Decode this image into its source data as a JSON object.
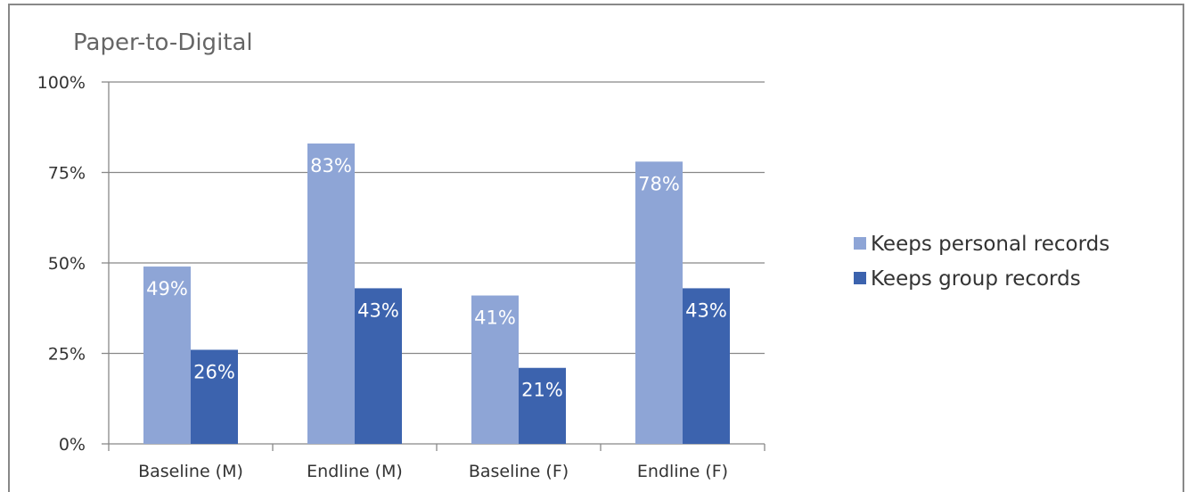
{
  "chart_data": {
    "type": "bar",
    "title": "Paper-to-Digital",
    "categories": [
      "Baseline (M)",
      "Endline (M)",
      "Baseline (F)",
      "Endline (F)"
    ],
    "series": [
      {
        "name": "Keeps personal records",
        "values": [
          0.49,
          0.83,
          0.41,
          0.78
        ],
        "labels": [
          "49%",
          "83%",
          "41%",
          "78%"
        ],
        "color": "#8EA5D6"
      },
      {
        "name": "Keeps group records",
        "values": [
          0.26,
          0.43,
          0.21,
          0.43
        ],
        "labels": [
          "26%",
          "43%",
          "21%",
          "43%"
        ],
        "color": "#3C63AE"
      }
    ],
    "ylim": [
      0,
      1
    ],
    "yticks": [
      {
        "value": 0,
        "label": "0%"
      },
      {
        "value": 0.25,
        "label": "25%"
      },
      {
        "value": 0.5,
        "label": "50%"
      },
      {
        "value": 0.75,
        "label": "75%"
      },
      {
        "value": 1,
        "label": "100%"
      }
    ],
    "grid": true,
    "legend_position": "right",
    "frame_color": "#888888"
  }
}
